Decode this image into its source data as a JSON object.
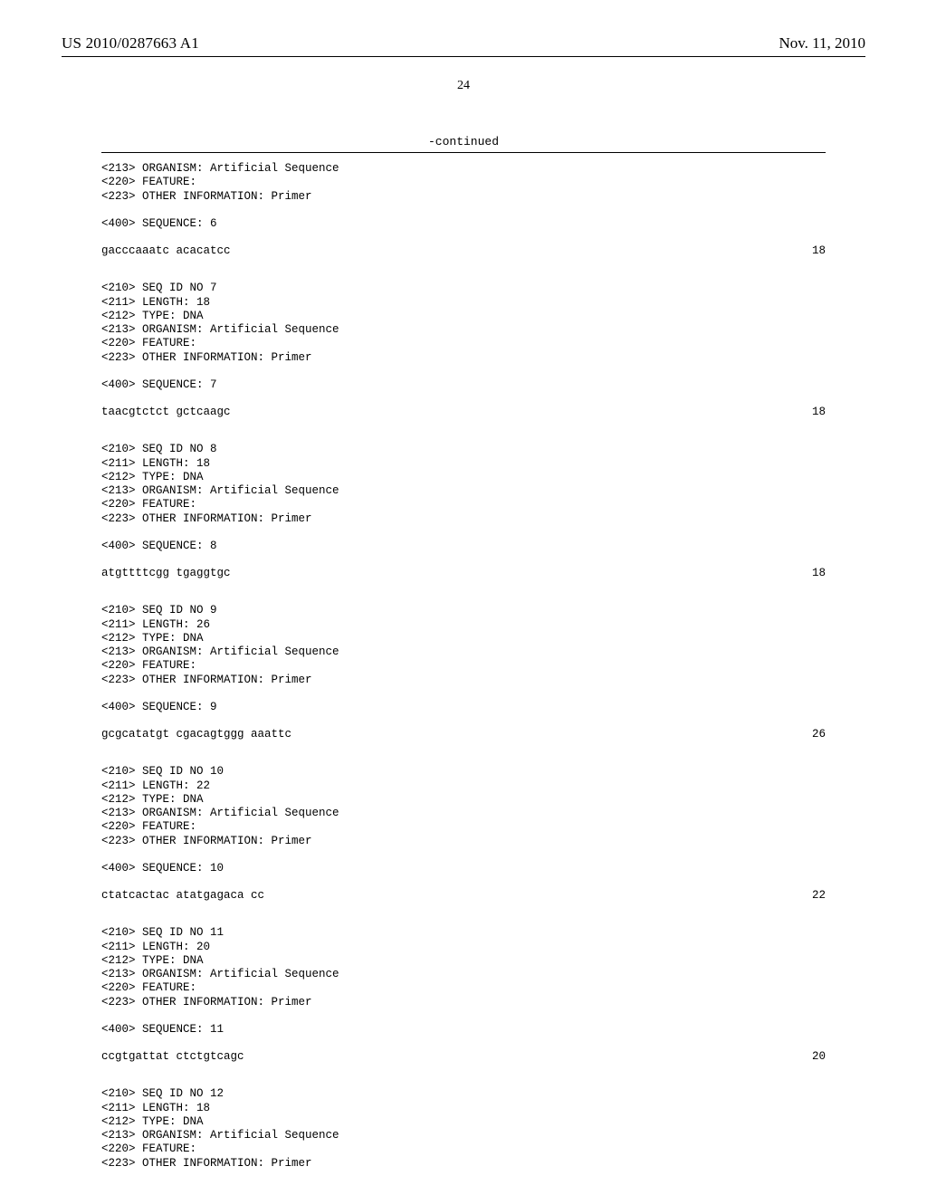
{
  "header": {
    "pub_number": "US 2010/0287663 A1",
    "pub_date": "Nov. 11, 2010",
    "page_number": "24",
    "continued": "-continued"
  },
  "font": {
    "header_family": "Times New Roman",
    "body_family": "Courier New",
    "header_size_pt": 13,
    "body_size_pt": 9
  },
  "colors": {
    "text": "#000000",
    "background": "#ffffff",
    "rule": "#000000"
  },
  "sequences": [
    {
      "header": [
        "<213> ORGANISM: Artificial Sequence",
        "<220> FEATURE:",
        "<223> OTHER INFORMATION: Primer"
      ],
      "seq_label": "<400> SEQUENCE: 6",
      "sequence": "gacccaaatc acacatcc",
      "length": "18"
    },
    {
      "header": [
        "<210> SEQ ID NO 7",
        "<211> LENGTH: 18",
        "<212> TYPE: DNA",
        "<213> ORGANISM: Artificial Sequence",
        "<220> FEATURE:",
        "<223> OTHER INFORMATION: Primer"
      ],
      "seq_label": "<400> SEQUENCE: 7",
      "sequence": "taacgtctct gctcaagc",
      "length": "18"
    },
    {
      "header": [
        "<210> SEQ ID NO 8",
        "<211> LENGTH: 18",
        "<212> TYPE: DNA",
        "<213> ORGANISM: Artificial Sequence",
        "<220> FEATURE:",
        "<223> OTHER INFORMATION: Primer"
      ],
      "seq_label": "<400> SEQUENCE: 8",
      "sequence": "atgttttcgg tgaggtgc",
      "length": "18"
    },
    {
      "header": [
        "<210> SEQ ID NO 9",
        "<211> LENGTH: 26",
        "<212> TYPE: DNA",
        "<213> ORGANISM: Artificial Sequence",
        "<220> FEATURE:",
        "<223> OTHER INFORMATION: Primer"
      ],
      "seq_label": "<400> SEQUENCE: 9",
      "sequence": "gcgcatatgt cgacagtggg aaattc",
      "length": "26"
    },
    {
      "header": [
        "<210> SEQ ID NO 10",
        "<211> LENGTH: 22",
        "<212> TYPE: DNA",
        "<213> ORGANISM: Artificial Sequence",
        "<220> FEATURE:",
        "<223> OTHER INFORMATION: Primer"
      ],
      "seq_label": "<400> SEQUENCE: 10",
      "sequence": "ctatcactac atatgagaca cc",
      "length": "22"
    },
    {
      "header": [
        "<210> SEQ ID NO 11",
        "<211> LENGTH: 20",
        "<212> TYPE: DNA",
        "<213> ORGANISM: Artificial Sequence",
        "<220> FEATURE:",
        "<223> OTHER INFORMATION: Primer"
      ],
      "seq_label": "<400> SEQUENCE: 11",
      "sequence": "ccgtgattat ctctgtcagc",
      "length": "20"
    },
    {
      "header": [
        "<210> SEQ ID NO 12",
        "<211> LENGTH: 18",
        "<212> TYPE: DNA",
        "<213> ORGANISM: Artificial Sequence",
        "<220> FEATURE:",
        "<223> OTHER INFORMATION: Primer"
      ]
    }
  ]
}
